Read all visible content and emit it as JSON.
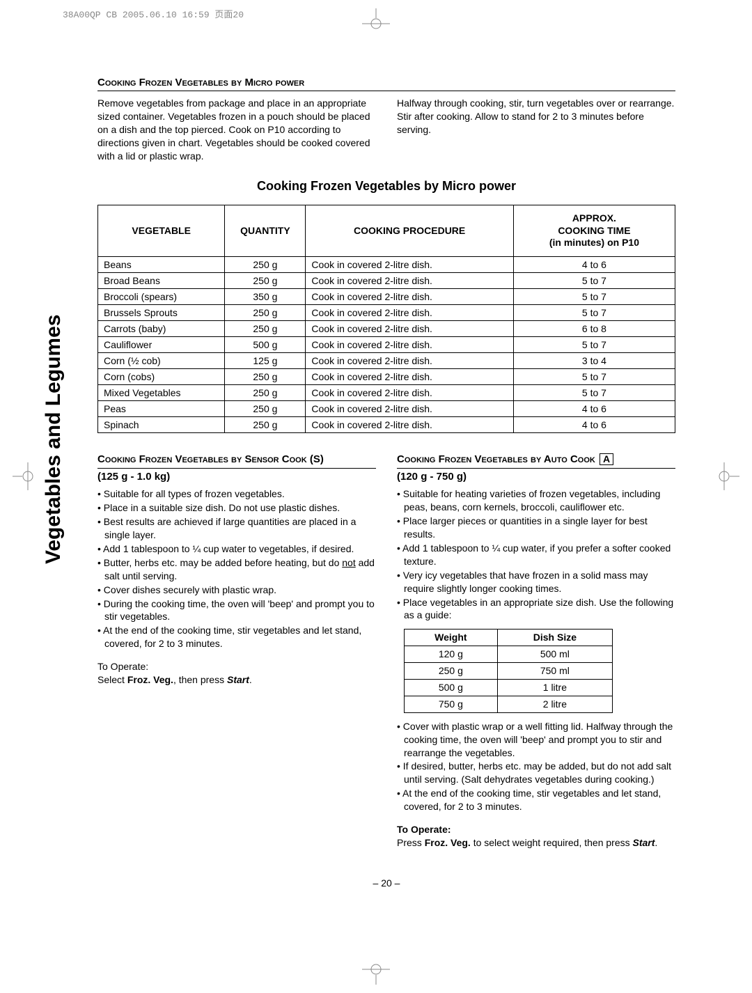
{
  "print_header": "38A00QP CB  2005.06.10 16:59  页面20",
  "sidebar_label": "Vegetables and Legumes",
  "page_number": "– 20 –",
  "section1": {
    "heading": "Cooking Frozen Vegetables by Micro power",
    "intro_left": "Remove vegetables from package and place in an appropriate sized container. Vegetables frozen in a pouch should be placed on a dish and the top pierced. Cook on P10 according to directions given in chart. Vegetables should be cooked covered with a lid or plastic wrap.",
    "intro_right": "Halfway through cooking, stir, turn vegetables over or rearrange. Stir after cooking. Allow to stand for 2 to 3 minutes before serving.",
    "table_title": "Cooking Frozen Vegetables by Micro power",
    "columns": [
      "VEGETABLE",
      "QUANTITY",
      "COOKING PROCEDURE",
      "APPROX. COOKING TIME (in minutes) on P10"
    ],
    "rows": [
      [
        "Beans",
        "250 g",
        "Cook in covered 2-litre dish.",
        "4 to 6"
      ],
      [
        "Broad Beans",
        "250 g",
        "Cook in covered 2-litre dish.",
        "5 to 7"
      ],
      [
        "Broccoli (spears)",
        "350 g",
        "Cook in covered 2-litre dish.",
        "5 to 7"
      ],
      [
        "Brussels Sprouts",
        "250 g",
        "Cook in covered 2-litre dish.",
        "5 to 7"
      ],
      [
        "Carrots (baby)",
        "250 g",
        "Cook in covered 2-litre dish.",
        "6 to 8"
      ],
      [
        "Cauliflower",
        "500 g",
        "Cook in covered 2-litre dish.",
        "5 to 7"
      ],
      [
        "Corn (½ cob)",
        "125 g",
        "Cook in covered 2-litre dish.",
        "3 to 4"
      ],
      [
        "Corn (cobs)",
        "250 g",
        "Cook in covered 2-litre dish.",
        "5 to 7"
      ],
      [
        "Mixed Vegetables",
        "250 g",
        "Cook in covered 2-litre dish.",
        "5 to 7"
      ],
      [
        "Peas",
        "250 g",
        "Cook in covered 2-litre dish.",
        "4 to 6"
      ],
      [
        "Spinach",
        "250 g",
        "Cook in covered 2-litre dish.",
        "4 to 6"
      ]
    ]
  },
  "sensor": {
    "heading": "Cooking Frozen Vegetables by Sensor Cook (S)",
    "range": "(125 g - 1.0 kg)",
    "bullets": [
      "Suitable for all types of frozen vegetables.",
      "Place in a suitable size dish. Do not use plastic dishes.",
      "Best results are achieved if large quantities are placed in a single layer.",
      "Add 1 tablespoon to ¼ cup water to vegetables, if desired.",
      "Butter, herbs etc. may be added before heating, but do not add salt until serving.",
      "Cover dishes securely with plastic wrap.",
      "During the cooking time, the oven will 'beep' and prompt you to stir vegetables.",
      "At the end of the cooking time, stir vegetables and let stand, covered, for 2 to 3 minutes."
    ],
    "operate_label": "To Operate:",
    "operate_text_pre": "Select ",
    "operate_bold1": "Froz. Veg.",
    "operate_mid": ", then press ",
    "operate_bold2": "Start",
    "operate_post": "."
  },
  "auto": {
    "heading": "Cooking Frozen Vegetables by Auto Cook",
    "heading_boxed": "A",
    "range": "(120 g - 750 g)",
    "bullets_top": [
      "Suitable for heating varieties of frozen vegetables, including peas, beans, corn kernels, broccoli, cauliflower etc.",
      "Place larger pieces or quantities in a single layer for best results.",
      "Add 1 tablespoon to ¼ cup water, if you prefer a softer cooked texture.",
      "Very icy vegetables that have frozen in a solid mass may require slightly longer cooking times.",
      "Place vegetables in an appropriate size dish. Use the following as a guide:"
    ],
    "dish_table": {
      "columns": [
        "Weight",
        "Dish Size"
      ],
      "rows": [
        [
          "120 g",
          "500 ml"
        ],
        [
          "250 g",
          "750 ml"
        ],
        [
          "500 g",
          "1 litre"
        ],
        [
          "750 g",
          "2 litre"
        ]
      ]
    },
    "bullets_bottom": [
      "Cover with plastic wrap or a well fitting lid. Halfway through the cooking time, the oven will 'beep' and prompt you to stir and rearrange the vegetables.",
      "If desired, butter, herbs etc. may be added, but do not add salt until serving. (Salt dehydrates vegetables during cooking.)",
      "At the end of the cooking time, stir vegetables and let stand, covered, for 2 to 3 minutes."
    ],
    "operate_label": "To Operate:",
    "operate_pre": "Press ",
    "operate_bold1": "Froz. Veg.",
    "operate_mid": " to select weight required, then press ",
    "operate_bold2": "Start",
    "operate_post": "."
  }
}
